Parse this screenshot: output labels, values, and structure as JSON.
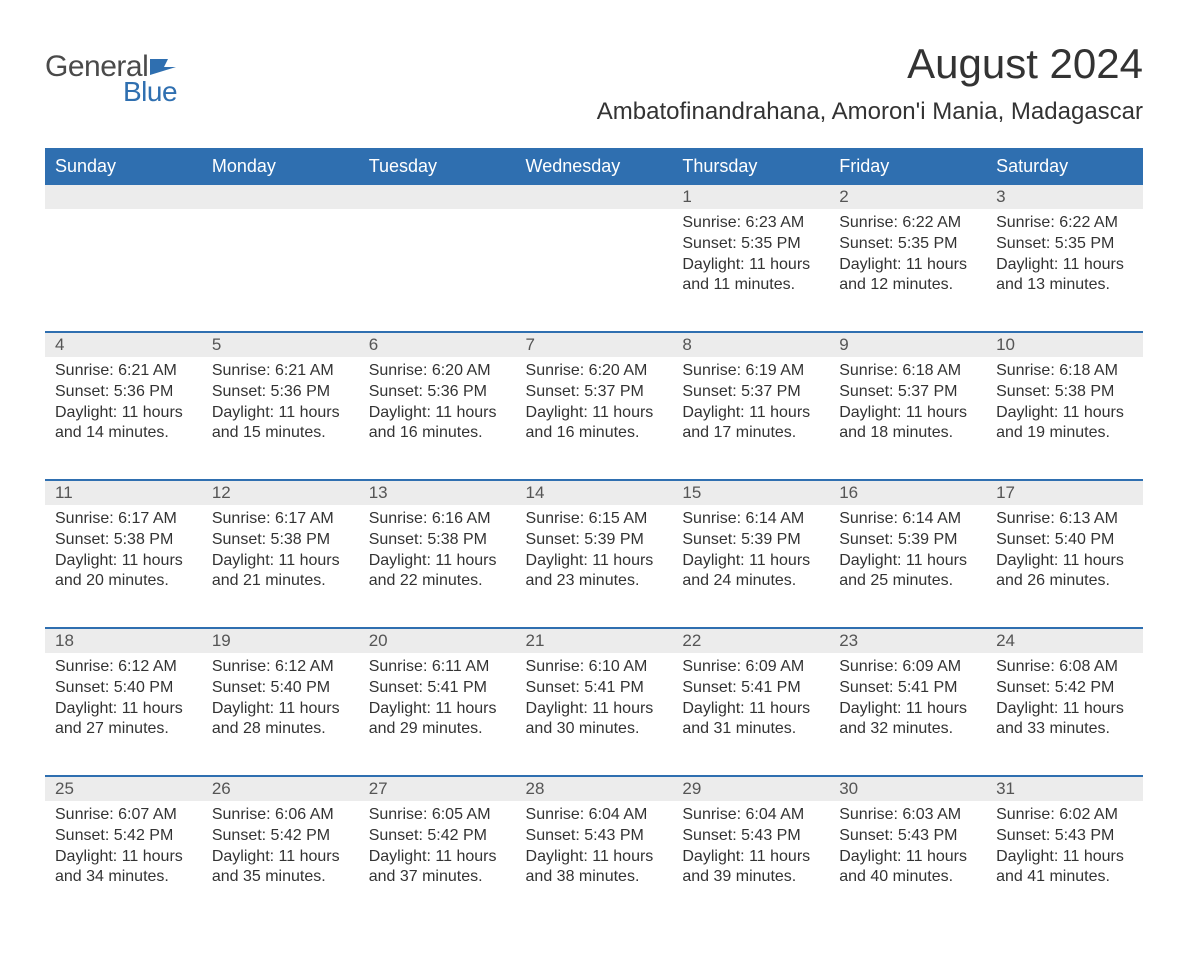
{
  "logo": {
    "text1": "General",
    "text2": "Blue",
    "flag_color": "#2f6fb0"
  },
  "title": "August 2024",
  "location": "Ambatofinandrahana, Amoron'i Mania, Madagascar",
  "colors": {
    "header_bg": "#2f6fb0",
    "header_fg": "#ffffff",
    "daynum_bg": "#ececec",
    "border": "#2f6fb0",
    "text": "#333333"
  },
  "fonts": {
    "title_size": 42,
    "location_size": 24,
    "header_size": 18,
    "cell_size": 16
  },
  "weekdays": [
    "Sunday",
    "Monday",
    "Tuesday",
    "Wednesday",
    "Thursday",
    "Friday",
    "Saturday"
  ],
  "weeks": [
    {
      "nums": [
        "",
        "",
        "",
        "",
        "1",
        "2",
        "3"
      ],
      "data": [
        null,
        null,
        null,
        null,
        {
          "sunrise": "6:23 AM",
          "sunset": "5:35 PM",
          "daylight": "11 hours and 11 minutes."
        },
        {
          "sunrise": "6:22 AM",
          "sunset": "5:35 PM",
          "daylight": "11 hours and 12 minutes."
        },
        {
          "sunrise": "6:22 AM",
          "sunset": "5:35 PM",
          "daylight": "11 hours and 13 minutes."
        }
      ]
    },
    {
      "nums": [
        "4",
        "5",
        "6",
        "7",
        "8",
        "9",
        "10"
      ],
      "data": [
        {
          "sunrise": "6:21 AM",
          "sunset": "5:36 PM",
          "daylight": "11 hours and 14 minutes."
        },
        {
          "sunrise": "6:21 AM",
          "sunset": "5:36 PM",
          "daylight": "11 hours and 15 minutes."
        },
        {
          "sunrise": "6:20 AM",
          "sunset": "5:36 PM",
          "daylight": "11 hours and 16 minutes."
        },
        {
          "sunrise": "6:20 AM",
          "sunset": "5:37 PM",
          "daylight": "11 hours and 16 minutes."
        },
        {
          "sunrise": "6:19 AM",
          "sunset": "5:37 PM",
          "daylight": "11 hours and 17 minutes."
        },
        {
          "sunrise": "6:18 AM",
          "sunset": "5:37 PM",
          "daylight": "11 hours and 18 minutes."
        },
        {
          "sunrise": "6:18 AM",
          "sunset": "5:38 PM",
          "daylight": "11 hours and 19 minutes."
        }
      ]
    },
    {
      "nums": [
        "11",
        "12",
        "13",
        "14",
        "15",
        "16",
        "17"
      ],
      "data": [
        {
          "sunrise": "6:17 AM",
          "sunset": "5:38 PM",
          "daylight": "11 hours and 20 minutes."
        },
        {
          "sunrise": "6:17 AM",
          "sunset": "5:38 PM",
          "daylight": "11 hours and 21 minutes."
        },
        {
          "sunrise": "6:16 AM",
          "sunset": "5:38 PM",
          "daylight": "11 hours and 22 minutes."
        },
        {
          "sunrise": "6:15 AM",
          "sunset": "5:39 PM",
          "daylight": "11 hours and 23 minutes."
        },
        {
          "sunrise": "6:14 AM",
          "sunset": "5:39 PM",
          "daylight": "11 hours and 24 minutes."
        },
        {
          "sunrise": "6:14 AM",
          "sunset": "5:39 PM",
          "daylight": "11 hours and 25 minutes."
        },
        {
          "sunrise": "6:13 AM",
          "sunset": "5:40 PM",
          "daylight": "11 hours and 26 minutes."
        }
      ]
    },
    {
      "nums": [
        "18",
        "19",
        "20",
        "21",
        "22",
        "23",
        "24"
      ],
      "data": [
        {
          "sunrise": "6:12 AM",
          "sunset": "5:40 PM",
          "daylight": "11 hours and 27 minutes."
        },
        {
          "sunrise": "6:12 AM",
          "sunset": "5:40 PM",
          "daylight": "11 hours and 28 minutes."
        },
        {
          "sunrise": "6:11 AM",
          "sunset": "5:41 PM",
          "daylight": "11 hours and 29 minutes."
        },
        {
          "sunrise": "6:10 AM",
          "sunset": "5:41 PM",
          "daylight": "11 hours and 30 minutes."
        },
        {
          "sunrise": "6:09 AM",
          "sunset": "5:41 PM",
          "daylight": "11 hours and 31 minutes."
        },
        {
          "sunrise": "6:09 AM",
          "sunset": "5:41 PM",
          "daylight": "11 hours and 32 minutes."
        },
        {
          "sunrise": "6:08 AM",
          "sunset": "5:42 PM",
          "daylight": "11 hours and 33 minutes."
        }
      ]
    },
    {
      "nums": [
        "25",
        "26",
        "27",
        "28",
        "29",
        "30",
        "31"
      ],
      "data": [
        {
          "sunrise": "6:07 AM",
          "sunset": "5:42 PM",
          "daylight": "11 hours and 34 minutes."
        },
        {
          "sunrise": "6:06 AM",
          "sunset": "5:42 PM",
          "daylight": "11 hours and 35 minutes."
        },
        {
          "sunrise": "6:05 AM",
          "sunset": "5:42 PM",
          "daylight": "11 hours and 37 minutes."
        },
        {
          "sunrise": "6:04 AM",
          "sunset": "5:43 PM",
          "daylight": "11 hours and 38 minutes."
        },
        {
          "sunrise": "6:04 AM",
          "sunset": "5:43 PM",
          "daylight": "11 hours and 39 minutes."
        },
        {
          "sunrise": "6:03 AM",
          "sunset": "5:43 PM",
          "daylight": "11 hours and 40 minutes."
        },
        {
          "sunrise": "6:02 AM",
          "sunset": "5:43 PM",
          "daylight": "11 hours and 41 minutes."
        }
      ]
    }
  ],
  "labels": {
    "sunrise": "Sunrise: ",
    "sunset": "Sunset: ",
    "daylight": "Daylight: "
  }
}
